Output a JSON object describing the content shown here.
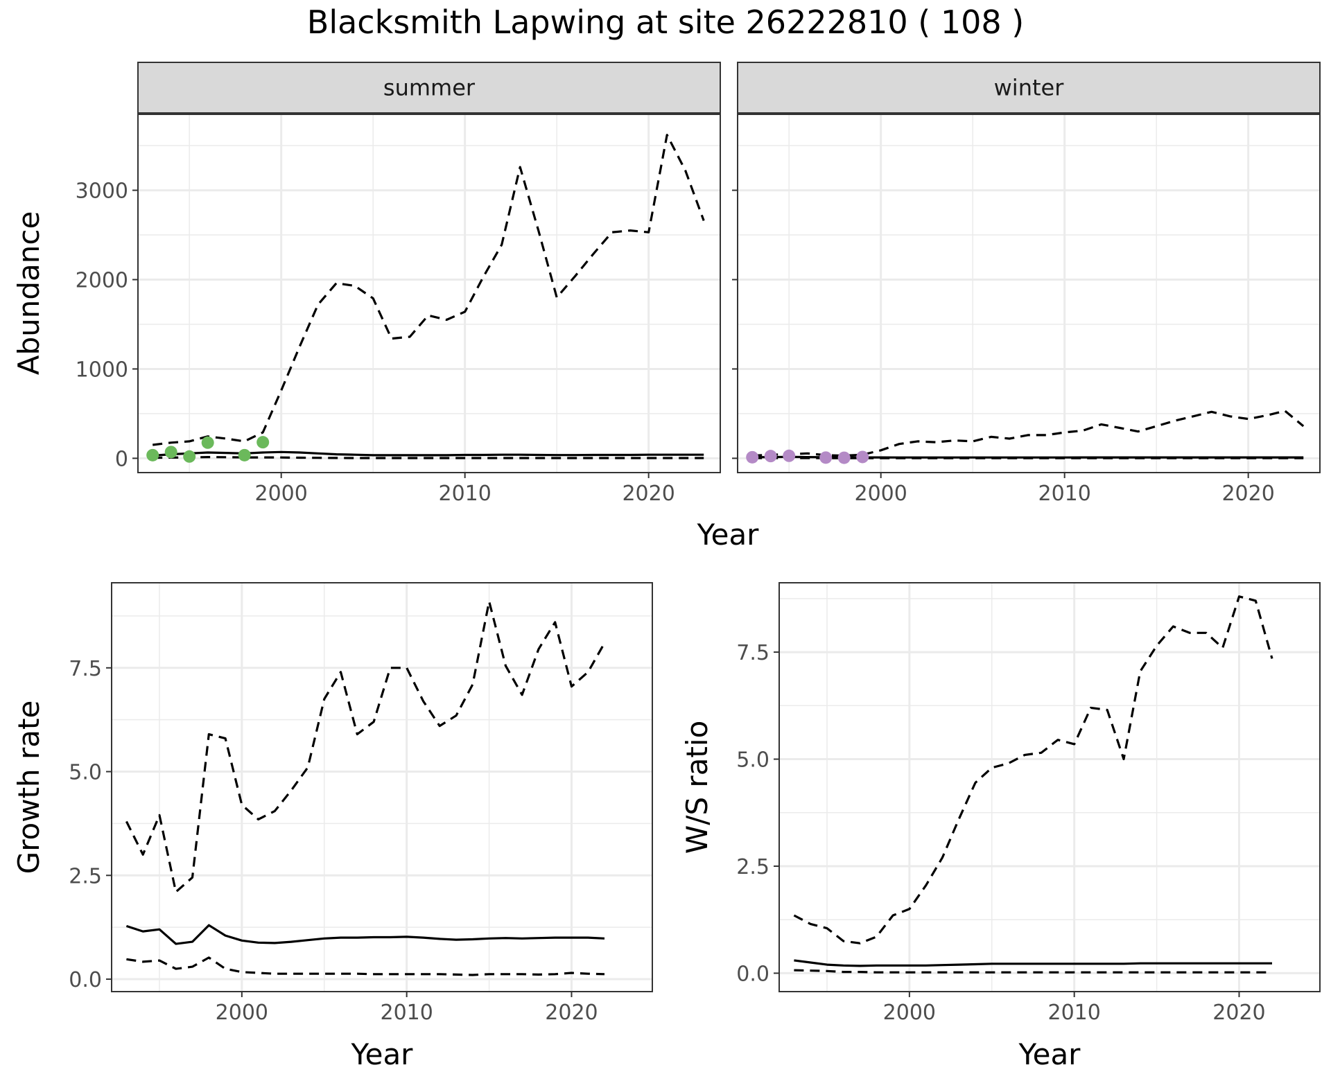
{
  "title": "Blacksmith Lapwing at site 26222810 ( 108 )",
  "colors": {
    "summer_points": "#6bb95b",
    "winter_points": "#b48ac6",
    "line": "#000000",
    "strip_fill": "#d9d9d9",
    "grid": "#ebebeb"
  },
  "chart_data": [
    {
      "type": "line",
      "panel": "summer",
      "strip_label": "summer",
      "xlabel": "Year",
      "ylabel": "Abundance",
      "xlim": [
        1992.2,
        2023.9
      ],
      "ylim": [
        -160,
        3850
      ],
      "xticks": [
        2000,
        2010,
        2020
      ],
      "yticks": [
        0,
        1000,
        2000,
        3000
      ],
      "grid": true,
      "series": [
        {
          "role": "upper",
          "style": "dashed",
          "x": [
            1993,
            1994,
            1995,
            1996,
            1997,
            1998,
            1999,
            2000,
            2001,
            2002,
            2003,
            2004,
            2005,
            2006,
            2007,
            2008,
            2009,
            2010,
            2011,
            2012,
            2013,
            2014,
            2015,
            2016,
            2017,
            2018,
            2019,
            2020,
            2021,
            2022,
            2023
          ],
          "y": [
            150,
            175,
            190,
            245,
            220,
            190,
            290,
            760,
            1250,
            1720,
            1960,
            1930,
            1790,
            1340,
            1360,
            1600,
            1550,
            1640,
            2030,
            2390,
            3260,
            2550,
            1800,
            2040,
            2290,
            2530,
            2550,
            2530,
            3620,
            3220,
            2660
          ]
        },
        {
          "role": "mean",
          "style": "solid",
          "x": [
            1993,
            1994,
            1995,
            1996,
            1997,
            1998,
            1999,
            2000,
            2001,
            2002,
            2003,
            2004,
            2005,
            2006,
            2007,
            2008,
            2009,
            2010,
            2011,
            2012,
            2013,
            2014,
            2015,
            2016,
            2017,
            2018,
            2019,
            2020,
            2021,
            2022,
            2023
          ],
          "y": [
            30,
            45,
            55,
            65,
            60,
            55,
            65,
            70,
            65,
            55,
            45,
            40,
            35,
            35,
            35,
            35,
            35,
            38,
            38,
            40,
            40,
            38,
            36,
            36,
            38,
            38,
            38,
            40,
            40,
            40,
            40
          ]
        },
        {
          "role": "lower",
          "style": "dashed",
          "x": [
            1993,
            1994,
            1995,
            1996,
            1997,
            1998,
            1999,
            2000,
            2001,
            2002,
            2003,
            2004,
            2005,
            2006,
            2007,
            2008,
            2009,
            2010,
            2011,
            2012,
            2013,
            2014,
            2015,
            2016,
            2017,
            2018,
            2019,
            2020,
            2021,
            2022,
            2023
          ],
          "y": [
            5,
            8,
            10,
            14,
            12,
            10,
            10,
            9,
            7,
            5,
            4,
            3,
            3,
            3,
            3,
            3,
            3,
            3,
            3,
            3,
            3,
            3,
            3,
            3,
            3,
            3,
            3,
            3,
            3,
            3,
            3
          ]
        }
      ],
      "points": {
        "x": [
          1993,
          1994,
          1995,
          1996,
          1998,
          1999
        ],
        "y": [
          35,
          70,
          20,
          175,
          35,
          180
        ]
      }
    },
    {
      "type": "line",
      "panel": "winter",
      "strip_label": "winter",
      "xlabel": "Year",
      "ylabel": "Abundance",
      "xlim": [
        1992.2,
        2023.9
      ],
      "ylim": [
        -160,
        3850
      ],
      "xticks": [
        2000,
        2010,
        2020
      ],
      "yticks": [
        0,
        1000,
        2000,
        3000
      ],
      "grid": true,
      "series": [
        {
          "role": "upper",
          "style": "dashed",
          "x": [
            1993,
            1994,
            1995,
            1996,
            1997,
            1998,
            1999,
            2000,
            2001,
            2002,
            2003,
            2004,
            2005,
            2006,
            2007,
            2008,
            2009,
            2010,
            2011,
            2012,
            2013,
            2014,
            2015,
            2016,
            2017,
            2018,
            2019,
            2020,
            2021,
            2022,
            2023
          ],
          "y": [
            30,
            40,
            45,
            55,
            35,
            30,
            40,
            90,
            160,
            190,
            180,
            200,
            190,
            240,
            220,
            260,
            260,
            290,
            310,
            380,
            340,
            300,
            360,
            420,
            470,
            520,
            470,
            440,
            480,
            530,
            360
          ]
        },
        {
          "role": "mean",
          "style": "solid",
          "x": [
            1993,
            1994,
            1995,
            1996,
            1997,
            1998,
            1999,
            2000,
            2001,
            2002,
            2003,
            2004,
            2005,
            2006,
            2007,
            2008,
            2009,
            2010,
            2011,
            2012,
            2013,
            2014,
            2015,
            2016,
            2017,
            2018,
            2019,
            2020,
            2021,
            2022,
            2023
          ],
          "y": [
            12,
            14,
            16,
            14,
            12,
            10,
            10,
            10,
            9,
            9,
            9,
            9,
            9,
            9,
            9,
            9,
            9,
            9,
            10,
            10,
            10,
            10,
            10,
            10,
            10,
            10,
            10,
            10,
            10,
            10,
            10
          ]
        },
        {
          "role": "lower",
          "style": "dashed",
          "x": [
            1993,
            1994,
            1995,
            1996,
            1997,
            1998,
            1999,
            2000,
            2001,
            2002,
            2003,
            2004,
            2005,
            2006,
            2007,
            2008,
            2009,
            2010,
            2011,
            2012,
            2013,
            2014,
            2015,
            2016,
            2017,
            2018,
            2019,
            2020,
            2021,
            2022,
            2023
          ],
          "y": [
            3,
            3,
            3,
            3,
            2,
            2,
            2,
            2,
            2,
            2,
            2,
            2,
            2,
            2,
            2,
            2,
            2,
            2,
            2,
            2,
            2,
            2,
            2,
            2,
            2,
            2,
            2,
            2,
            2,
            2,
            2
          ]
        }
      ],
      "points": {
        "x": [
          1993,
          1994,
          1995,
          1997,
          1998,
          1999
        ],
        "y": [
          12,
          25,
          28,
          8,
          6,
          15
        ]
      }
    },
    {
      "type": "line",
      "panel": "growth",
      "xlabel": "Year",
      "ylabel": "Growth rate",
      "xlim": [
        1992.1,
        2024.9
      ],
      "ylim": [
        -0.3,
        9.55
      ],
      "xticks": [
        2000,
        2010,
        2020
      ],
      "yticks": [
        0.0,
        2.5,
        5.0,
        7.5
      ],
      "ytick_labels": [
        "0.0",
        "2.5",
        "5.0",
        "7.5"
      ],
      "grid": true,
      "series": [
        {
          "role": "upper",
          "style": "dashed",
          "x": [
            1993,
            1994,
            1995,
            1996,
            1997,
            1998,
            1999,
            2000,
            2001,
            2002,
            2003,
            2004,
            2005,
            2006,
            2007,
            2008,
            2009,
            2010,
            2011,
            2012,
            2013,
            2014,
            2015,
            2016,
            2017,
            2018,
            2019,
            2020,
            2021,
            2022
          ],
          "y": [
            3.8,
            3.0,
            3.95,
            2.1,
            2.45,
            5.9,
            5.8,
            4.2,
            3.85,
            4.05,
            4.55,
            5.1,
            6.75,
            7.4,
            5.9,
            6.2,
            7.5,
            7.5,
            6.7,
            6.1,
            6.35,
            7.1,
            9.1,
            7.55,
            6.85,
            7.95,
            8.6,
            7.05,
            7.4,
            8.1
          ]
        },
        {
          "role": "mean",
          "style": "solid",
          "x": [
            1993,
            1994,
            1995,
            1996,
            1997,
            1998,
            1999,
            2000,
            2001,
            2002,
            2003,
            2004,
            2005,
            2006,
            2007,
            2008,
            2009,
            2010,
            2011,
            2012,
            2013,
            2014,
            2015,
            2016,
            2017,
            2018,
            2019,
            2020,
            2021,
            2022
          ],
          "y": [
            1.28,
            1.15,
            1.2,
            0.85,
            0.9,
            1.3,
            1.05,
            0.93,
            0.88,
            0.87,
            0.9,
            0.94,
            0.98,
            1.0,
            1.0,
            1.01,
            1.01,
            1.02,
            1.0,
            0.97,
            0.95,
            0.96,
            0.98,
            0.99,
            0.98,
            0.99,
            1.0,
            1.0,
            1.0,
            0.98
          ]
        },
        {
          "role": "lower",
          "style": "dashed",
          "x": [
            1993,
            1994,
            1995,
            1996,
            1997,
            1998,
            1999,
            2000,
            2001,
            2002,
            2003,
            2004,
            2005,
            2006,
            2007,
            2008,
            2009,
            2010,
            2011,
            2012,
            2013,
            2014,
            2015,
            2016,
            2017,
            2018,
            2019,
            2020,
            2021,
            2022
          ],
          "y": [
            0.48,
            0.42,
            0.45,
            0.25,
            0.3,
            0.52,
            0.25,
            0.17,
            0.15,
            0.13,
            0.13,
            0.13,
            0.13,
            0.13,
            0.13,
            0.12,
            0.12,
            0.12,
            0.12,
            0.12,
            0.11,
            0.1,
            0.12,
            0.12,
            0.12,
            0.11,
            0.12,
            0.15,
            0.13,
            0.12
          ]
        }
      ]
    },
    {
      "type": "line",
      "panel": "ratio",
      "xlabel": "Year",
      "ylabel": "W/S ratio",
      "xlim": [
        1992.1,
        2024.9
      ],
      "ylim": [
        -0.43,
        9.12
      ],
      "xticks": [
        2000,
        2010,
        2020
      ],
      "yticks": [
        0.0,
        2.5,
        5.0,
        7.5
      ],
      "ytick_labels": [
        "0.0",
        "2.5",
        "5.0",
        "7.5"
      ],
      "grid": true,
      "series": [
        {
          "role": "upper",
          "style": "dashed",
          "x": [
            1993,
            1994,
            1995,
            1996,
            1997,
            1998,
            1999,
            2000,
            2001,
            2002,
            2003,
            2004,
            2005,
            2006,
            2007,
            2008,
            2009,
            2010,
            2011,
            2012,
            2013,
            2014,
            2015,
            2016,
            2017,
            2018,
            2019,
            2020,
            2021,
            2022
          ],
          "y": [
            1.35,
            1.15,
            1.05,
            0.75,
            0.7,
            0.85,
            1.35,
            1.5,
            2.05,
            2.7,
            3.6,
            4.45,
            4.8,
            4.9,
            5.1,
            5.15,
            5.45,
            5.35,
            6.2,
            6.15,
            5.0,
            7.05,
            7.65,
            8.1,
            7.95,
            7.95,
            7.6,
            8.8,
            8.7,
            7.35
          ]
        },
        {
          "role": "mean",
          "style": "solid",
          "x": [
            1993,
            1994,
            1995,
            1996,
            1997,
            1998,
            1999,
            2000,
            2001,
            2002,
            2003,
            2004,
            2005,
            2006,
            2007,
            2008,
            2009,
            2010,
            2011,
            2012,
            2013,
            2014,
            2015,
            2016,
            2017,
            2018,
            2019,
            2020,
            2021,
            2022
          ],
          "y": [
            0.3,
            0.25,
            0.2,
            0.18,
            0.17,
            0.18,
            0.18,
            0.18,
            0.18,
            0.19,
            0.2,
            0.21,
            0.22,
            0.22,
            0.22,
            0.22,
            0.22,
            0.22,
            0.22,
            0.22,
            0.22,
            0.23,
            0.23,
            0.23,
            0.23,
            0.23,
            0.23,
            0.23,
            0.23,
            0.23
          ]
        },
        {
          "role": "lower",
          "style": "dashed",
          "x": [
            1993,
            1994,
            1995,
            1996,
            1997,
            1998,
            1999,
            2000,
            2001,
            2002,
            2003,
            2004,
            2005,
            2006,
            2007,
            2008,
            2009,
            2010,
            2011,
            2012,
            2013,
            2014,
            2015,
            2016,
            2017,
            2018,
            2019,
            2020,
            2021,
            2022
          ],
          "y": [
            0.07,
            0.06,
            0.05,
            0.03,
            0.03,
            0.02,
            0.02,
            0.02,
            0.02,
            0.02,
            0.02,
            0.02,
            0.02,
            0.02,
            0.02,
            0.02,
            0.02,
            0.02,
            0.02,
            0.02,
            0.02,
            0.02,
            0.02,
            0.02,
            0.02,
            0.02,
            0.02,
            0.02,
            0.02,
            0.02
          ]
        }
      ]
    }
  ],
  "shared_xlabel_top": "Year"
}
